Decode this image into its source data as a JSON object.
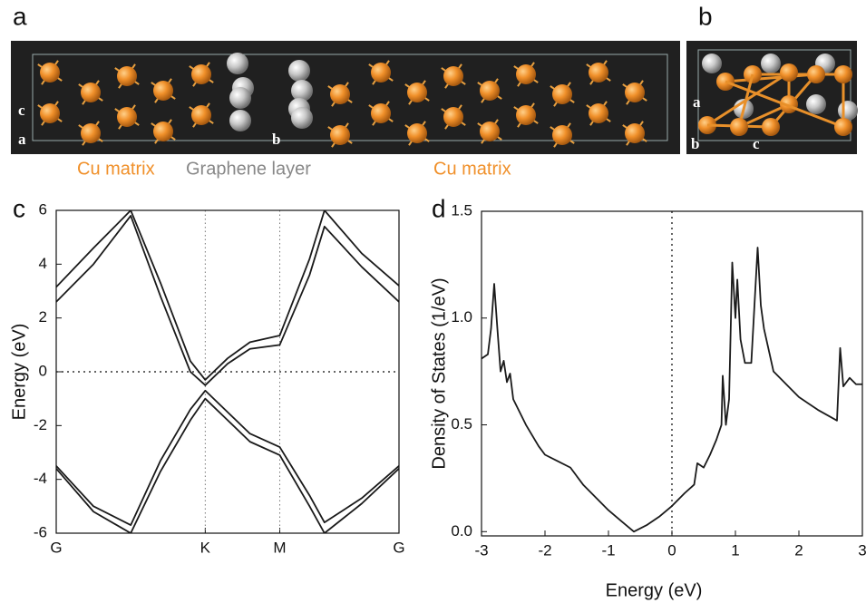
{
  "figure": {
    "panel_labels": [
      "a",
      "b",
      "c",
      "d"
    ],
    "structure_a": {
      "axis_labels": [
        "c",
        "a",
        "b"
      ],
      "captions": [
        "Cu matrix",
        "Graphene layer",
        "Cu matrix"
      ]
    },
    "structure_b": {
      "axis_labels": [
        "a",
        "b",
        "c"
      ]
    }
  },
  "chart_data": [
    {
      "type": "line",
      "ylabel": "Energy (eV)",
      "x": [
        0,
        0.25,
        0.5,
        0.7,
        0.9,
        1.0,
        1.15,
        1.3,
        1.5,
        1.7,
        1.8,
        2.05,
        2.3
      ],
      "series": [
        {
          "color": "#1a1a1a",
          "values": [
            3.15,
            4.6,
            6,
            3.3,
            0.4,
            -0.3,
            0.5,
            1.1,
            1.35,
            4.2,
            6,
            4.4,
            3.2
          ]
        },
        {
          "color": "#1a1a1a",
          "values": [
            2.6,
            4.0,
            5.8,
            2.8,
            0.0,
            -0.5,
            0.3,
            0.85,
            1.0,
            3.6,
            5.4,
            3.9,
            2.6
          ]
        },
        {
          "color": "#1a1a1a",
          "values": [
            -3.5,
            -5.0,
            -5.7,
            -3.3,
            -1.4,
            -0.7,
            -1.5,
            -2.3,
            -2.8,
            -4.6,
            -5.6,
            -4.7,
            -3.5
          ]
        },
        {
          "color": "#1a1a1a",
          "values": [
            -3.6,
            -5.2,
            -6,
            -3.7,
            -1.8,
            -1.0,
            -1.8,
            -2.6,
            -3.1,
            -5.0,
            -6,
            -4.9,
            -3.6
          ]
        }
      ],
      "xlim": [
        0,
        2.3
      ],
      "xticks": [
        {
          "value": 0,
          "label": "G"
        },
        {
          "value": 1.0,
          "label": "K"
        },
        {
          "value": 1.5,
          "label": "M"
        },
        {
          "value": 2.3,
          "label": "G"
        }
      ],
      "ylim": [
        -6,
        6
      ],
      "yticks": [
        -6,
        -4,
        -2,
        0,
        2,
        4,
        6
      ],
      "xgrid_dotted": true,
      "hline_dotted": 0
    },
    {
      "type": "line",
      "xlabel": "Energy (eV)",
      "ylabel": "Density of States (1/eV)",
      "x": [
        -3.0,
        -2.9,
        -2.85,
        -2.8,
        -2.75,
        -2.7,
        -2.65,
        -2.6,
        -2.55,
        -2.5,
        -2.3,
        -2.1,
        -2.0,
        -1.8,
        -1.6,
        -1.4,
        -1.2,
        -1.0,
        -0.8,
        -0.6,
        -0.4,
        -0.2,
        0.0,
        0.2,
        0.35,
        0.4,
        0.5,
        0.6,
        0.7,
        0.78,
        0.8,
        0.85,
        0.9,
        0.95,
        1.0,
        1.03,
        1.08,
        1.15,
        1.25,
        1.35,
        1.4,
        1.45,
        1.6,
        2.0,
        2.3,
        2.6,
        2.65,
        2.7,
        2.8,
        2.9,
        3.0
      ],
      "series": [
        {
          "color": "#1a1a1a",
          "values": [
            0.81,
            0.83,
            0.95,
            1.16,
            0.95,
            0.75,
            0.8,
            0.7,
            0.74,
            0.62,
            0.5,
            0.4,
            0.36,
            0.33,
            0.3,
            0.22,
            0.16,
            0.1,
            0.05,
            0.0,
            0.03,
            0.07,
            0.12,
            0.18,
            0.22,
            0.32,
            0.3,
            0.36,
            0.43,
            0.5,
            0.73,
            0.5,
            0.62,
            1.26,
            1.0,
            1.18,
            0.9,
            0.79,
            0.79,
            1.33,
            1.06,
            0.95,
            0.75,
            0.63,
            0.57,
            0.52,
            0.86,
            0.68,
            0.72,
            0.69,
            0.69
          ]
        }
      ],
      "xlim": [
        -3,
        3
      ],
      "xticks": [
        -3,
        -2,
        -1,
        0,
        1,
        2,
        3
      ],
      "ylim": [
        -0.02,
        1.5
      ],
      "yticks": [
        {
          "value": 0,
          "label": "0.0"
        },
        {
          "value": 0.5,
          "label": "0.5"
        },
        {
          "value": 1,
          "label": "1.0"
        },
        {
          "value": 1.5,
          "label": "1.5"
        }
      ],
      "vline_dotted": 0
    }
  ]
}
